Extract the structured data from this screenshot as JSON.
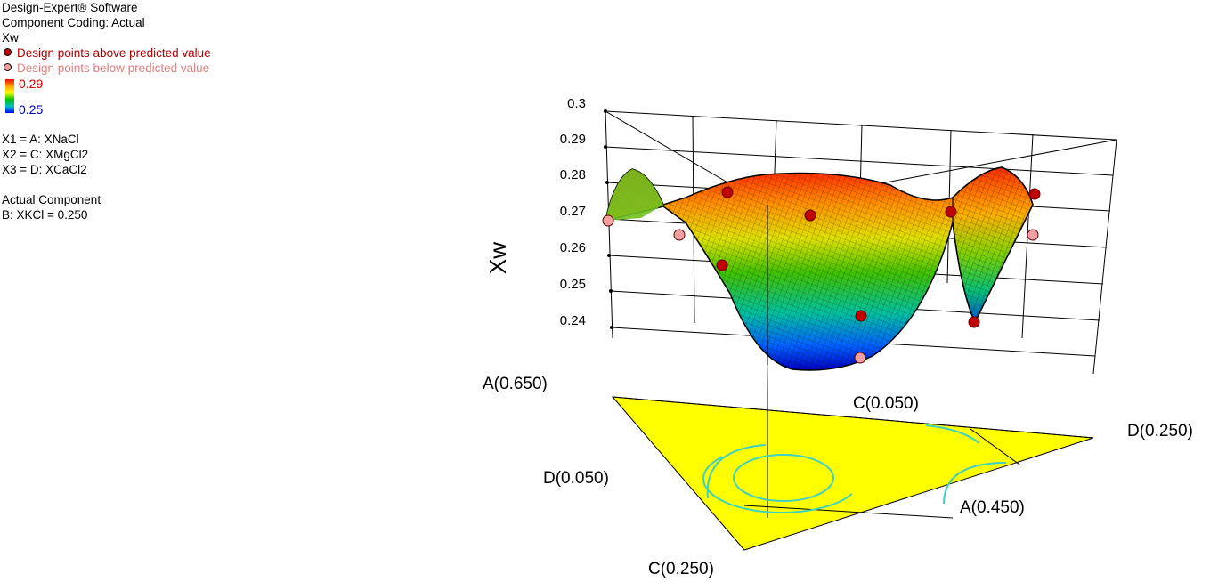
{
  "header": {
    "software": "Design-Expert® Software",
    "coding": "Component Coding: Actual"
  },
  "legend": {
    "response": "Xw",
    "above_label": "Design points above predicted value",
    "below_label": "Design points below predicted value",
    "color_high": "0.29",
    "color_low": "0.25",
    "above_color": "#c00000",
    "below_color": "#f0a0a0",
    "x1": "X1 = A: XNaCl",
    "x2": "X2 = C: XMgCl2",
    "x3": "X3 = D: XCaCl2",
    "actual_title": "Actual Component",
    "actual_value": "B: XKCl = 0.250"
  },
  "chart_data": {
    "type": "surface",
    "zlabel": "Xw",
    "z_ticks": [
      "0.3",
      "0.29",
      "0.28",
      "0.27",
      "0.26",
      "0.25",
      "0.24"
    ],
    "zlim": [
      0.24,
      0.3
    ],
    "vertex_labels": {
      "a_high": "A(0.650)",
      "c_low": "C(0.050)",
      "d_high": "D(0.250)",
      "d_low": "D(0.050)",
      "a_low": "A(0.450)",
      "c_high": "C(0.250)"
    },
    "surface_color_range": [
      0.25,
      0.29
    ],
    "design_points": [
      {
        "A": 0.65,
        "C": 0.05,
        "D": 0.05,
        "Xw": 0.268,
        "position": "below"
      },
      {
        "A": 0.55,
        "C": 0.05,
        "D": 0.15,
        "Xw": 0.281,
        "position": "above"
      },
      {
        "A": 0.45,
        "C": 0.05,
        "D": 0.25,
        "Xw": 0.281,
        "position": "above"
      },
      {
        "A": 0.6,
        "C": 0.1,
        "D": 0.05,
        "Xw": 0.265,
        "position": "below"
      },
      {
        "A": 0.55,
        "C": 0.1,
        "D": 0.1,
        "Xw": 0.275,
        "position": "above"
      },
      {
        "A": 0.5,
        "C": 0.15,
        "D": 0.1,
        "Xw": 0.253,
        "position": "above"
      },
      {
        "A": 0.45,
        "C": 0.15,
        "D": 0.15,
        "Xw": 0.25,
        "position": "above"
      },
      {
        "A": 0.45,
        "C": 0.25,
        "D": 0.05,
        "Xw": 0.245,
        "position": "below"
      },
      {
        "A": 0.5,
        "C": 0.05,
        "D": 0.2,
        "Xw": 0.279,
        "position": "above"
      },
      {
        "A": 0.45,
        "C": 0.1,
        "D": 0.2,
        "Xw": 0.268,
        "position": "below"
      },
      {
        "A": 0.45,
        "C": 0.2,
        "D": 0.1,
        "Xw": 0.242,
        "position": "above"
      }
    ]
  }
}
